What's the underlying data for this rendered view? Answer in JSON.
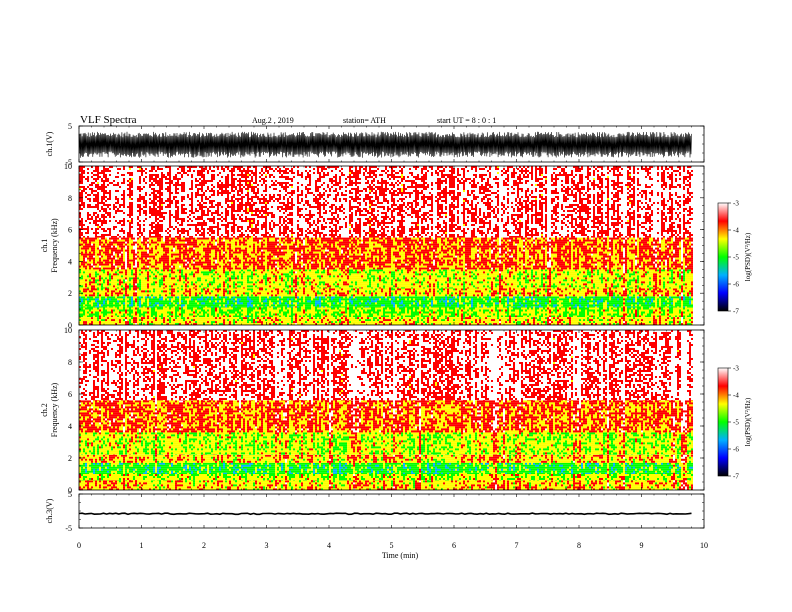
{
  "header": {
    "title": "VLF  Spectra",
    "date": "Aug.2  , 2019",
    "station": "station= ATH",
    "start_ut": "start  UT  =   8 : 0  : 1"
  },
  "chart_data": [
    {
      "type": "line",
      "name": "ch1-waveform",
      "ylabel": "ch.1(V)",
      "ylim": [
        -5,
        5
      ],
      "yticks": [
        "5",
        "-5"
      ],
      "xlim": [
        0,
        10
      ],
      "x_end_data": 9.8,
      "amplitude_range_V": [
        -3.8,
        3.4
      ]
    },
    {
      "type": "heatmap",
      "name": "ch1-spectrogram",
      "ylabel": "ch.1  Frequency  (kHz)",
      "ylim": [
        0,
        10
      ],
      "yticks": [
        "0",
        "2",
        "4",
        "6",
        "8",
        "10"
      ],
      "xlim": [
        0,
        10
      ],
      "x_end_data": 9.8,
      "bands_khz": [
        {
          "from": 0.0,
          "to": 0.5,
          "logpsd": -4.3
        },
        {
          "from": 0.5,
          "to": 1.1,
          "logpsd": -4.6
        },
        {
          "from": 1.1,
          "to": 1.8,
          "logpsd": -5.0
        },
        {
          "from": 1.8,
          "to": 2.3,
          "logpsd": -4.2
        },
        {
          "from": 2.3,
          "to": 3.5,
          "logpsd": -4.4
        },
        {
          "from": 3.5,
          "to": 5.5,
          "logpsd": -3.9
        },
        {
          "from": 5.5,
          "to": 10.0,
          "logpsd": -3.3
        }
      ],
      "colorbar": {
        "label": "log(PSD)(V²/Hz)",
        "range": [
          -7,
          -3
        ],
        "ticks": [
          "-3",
          "-4",
          "-5",
          "-6",
          "-7"
        ]
      }
    },
    {
      "type": "heatmap",
      "name": "ch2-spectrogram",
      "ylabel": "ch.2  Frequency  (kHz)",
      "ylim": [
        0,
        10
      ],
      "yticks": [
        "0",
        "2",
        "4",
        "6",
        "8",
        "10"
      ],
      "xlim": [
        0,
        10
      ],
      "x_end_data": 9.8,
      "bands_khz": [
        {
          "from": 0.0,
          "to": 0.6,
          "logpsd": -4.2
        },
        {
          "from": 0.6,
          "to": 1.0,
          "logpsd": -4.5
        },
        {
          "from": 1.0,
          "to": 1.7,
          "logpsd": -5.0
        },
        {
          "from": 1.7,
          "to": 2.2,
          "logpsd": -4.2
        },
        {
          "from": 2.2,
          "to": 3.6,
          "logpsd": -4.5
        },
        {
          "from": 3.6,
          "to": 5.6,
          "logpsd": -3.9
        },
        {
          "from": 5.6,
          "to": 10.0,
          "logpsd": -3.3
        }
      ],
      "colorbar": {
        "label": "log(PSD)(V²/Hz)",
        "range": [
          -7,
          -3
        ],
        "ticks": [
          "-3",
          "-4",
          "-5",
          "-6",
          "-7"
        ]
      }
    },
    {
      "type": "line",
      "name": "ch3-waveform",
      "ylabel": "ch.3(V)",
      "ylim": [
        -5,
        5
      ],
      "yticks": [
        "5",
        "-5"
      ],
      "xlim": [
        0,
        10
      ],
      "x_end_data": 9.8,
      "level_V": -0.8
    }
  ],
  "xaxis": {
    "label": "Time  (min)",
    "ticks": [
      "0",
      "1",
      "2",
      "3",
      "4",
      "5",
      "6",
      "7",
      "8",
      "9",
      "10"
    ]
  },
  "colors": {
    "trace": "#000000",
    "colormap": [
      "#000000",
      "#0000ff",
      "#00b0ff",
      "#00ff00",
      "#ffff00",
      "#ff0000",
      "#ffffff"
    ]
  }
}
